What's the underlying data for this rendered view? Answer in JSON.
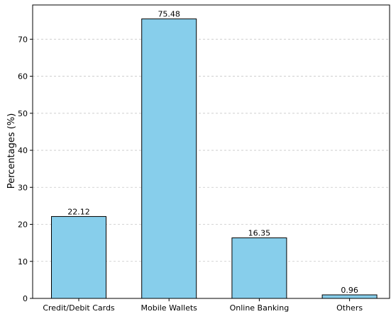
{
  "chart_data": {
    "type": "bar",
    "title": "",
    "xlabel": "",
    "ylabel": "Percentages (%)",
    "categories": [
      "Credit/Debit Cards",
      "Mobile Wallets",
      "Online Banking",
      "Others"
    ],
    "values": [
      22.12,
      75.48,
      16.35,
      0.96
    ],
    "data_labels": [
      "22.12",
      "75.48",
      "16.35",
      "0.96"
    ],
    "yticks": [
      0,
      10,
      20,
      30,
      40,
      50,
      60,
      70
    ],
    "ylim": [
      0,
      79.25
    ],
    "grid": "horizontal dashed",
    "bar_color": "#87CEEB",
    "edge_color": "#000000"
  }
}
